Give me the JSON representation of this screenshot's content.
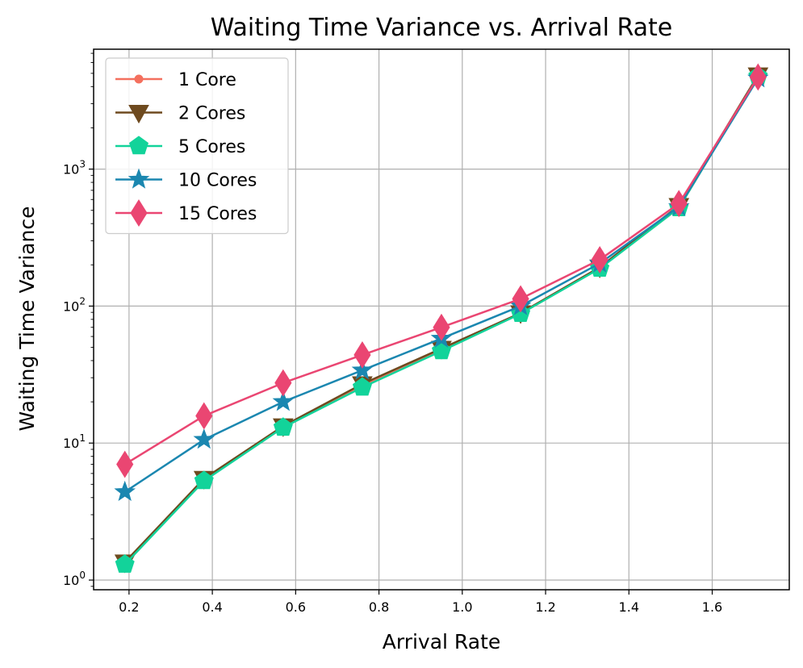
{
  "chart_data": {
    "type": "line",
    "title": "Waiting Time Variance vs. Arrival Rate",
    "xlabel": "Arrival Rate",
    "ylabel": "Waiting Time Variance",
    "yscale": "log",
    "x": [
      0.19,
      0.38,
      0.57,
      0.76,
      0.95,
      1.14,
      1.33,
      1.52,
      1.71
    ],
    "xlim": [
      0.115,
      1.785
    ],
    "ylim": [
      0.85,
      7500
    ],
    "x_ticks": [
      0.2,
      0.4,
      0.6,
      0.8,
      1.0,
      1.2,
      1.4,
      1.6
    ],
    "x_tick_labels": [
      "0.2",
      "0.4",
      "0.6",
      "0.8",
      "1.0",
      "1.2",
      "1.4",
      "1.6"
    ],
    "y_ticks": [
      1,
      10,
      100,
      1000
    ],
    "y_tick_labels": [
      {
        "base": "10",
        "exp": "0"
      },
      {
        "base": "10",
        "exp": "1"
      },
      {
        "base": "10",
        "exp": "2"
      },
      {
        "base": "10",
        "exp": "3"
      }
    ],
    "grid": true,
    "legend_position": "top-left",
    "series": [
      {
        "name": "1 Core",
        "color": "#f4705e",
        "marker": "circle",
        "values": [
          1.3,
          5.4,
          13.0,
          26.0,
          48.0,
          88.0,
          190.0,
          520.0,
          4800.0
        ]
      },
      {
        "name": "2 Cores",
        "color": "#6e4a1f",
        "marker": "triangle-down",
        "values": [
          1.35,
          5.5,
          13.3,
          27.0,
          49.0,
          89.0,
          192.0,
          540.0,
          4850.0
        ]
      },
      {
        "name": "5 Cores",
        "color": "#12d39a",
        "marker": "pentagon",
        "values": [
          1.3,
          5.3,
          13.0,
          25.5,
          47.0,
          88.0,
          188.0,
          520.0,
          4750.0
        ]
      },
      {
        "name": "10 Cores",
        "color": "#1b87b0",
        "marker": "star",
        "values": [
          4.4,
          10.6,
          20.0,
          34.0,
          58.0,
          100.0,
          205.0,
          530.0,
          4600.0
        ]
      },
      {
        "name": "15 Cores",
        "color": "#ea4672",
        "marker": "thin-diamond",
        "values": [
          7.0,
          15.8,
          27.5,
          44.0,
          70.0,
          113.0,
          218.0,
          560.0,
          4700.0
        ]
      }
    ]
  }
}
